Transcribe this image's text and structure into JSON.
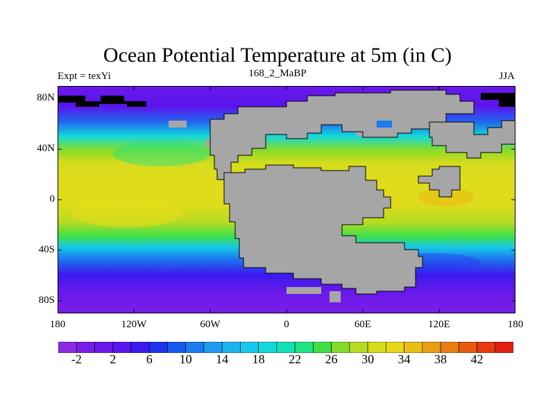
{
  "title": "Ocean Potential Temperature at 5m (in C)",
  "left_label": "Expt = texYi",
  "center_label": "168_2_MaBP",
  "right_label": "JJA",
  "land_color": "#a6a6a6",
  "lat_ticks": [
    "80N",
    "40N",
    "0",
    "40S",
    "80S"
  ],
  "lat_values": [
    80,
    40,
    0,
    -40,
    -80
  ],
  "lon_ticks": [
    "180",
    "120W",
    "60W",
    "0",
    "60E",
    "120E",
    "180"
  ],
  "lon_values": [
    -180,
    -120,
    -60,
    0,
    60,
    120,
    180
  ],
  "colorbar": {
    "colors": [
      "#8a2be2",
      "#7a1fe6",
      "#6a19ea",
      "#5a14ee",
      "#3a1aef",
      "#1f33ee",
      "#1458ee",
      "#1a7bef",
      "#1f9bf0",
      "#1ab4ee",
      "#16c8ea",
      "#12d8db",
      "#13dfb6",
      "#1ee383",
      "#3fe047",
      "#84dc2a",
      "#b7db22",
      "#d6dc1d",
      "#e7d619",
      "#e8bf14",
      "#e8a012",
      "#e87d11",
      "#e85a10",
      "#e63a10",
      "#e21e10"
    ],
    "labels": [
      "-2",
      "2",
      "6",
      "10",
      "14",
      "18",
      "22",
      "26",
      "30",
      "34",
      "38",
      "42"
    ]
  }
}
